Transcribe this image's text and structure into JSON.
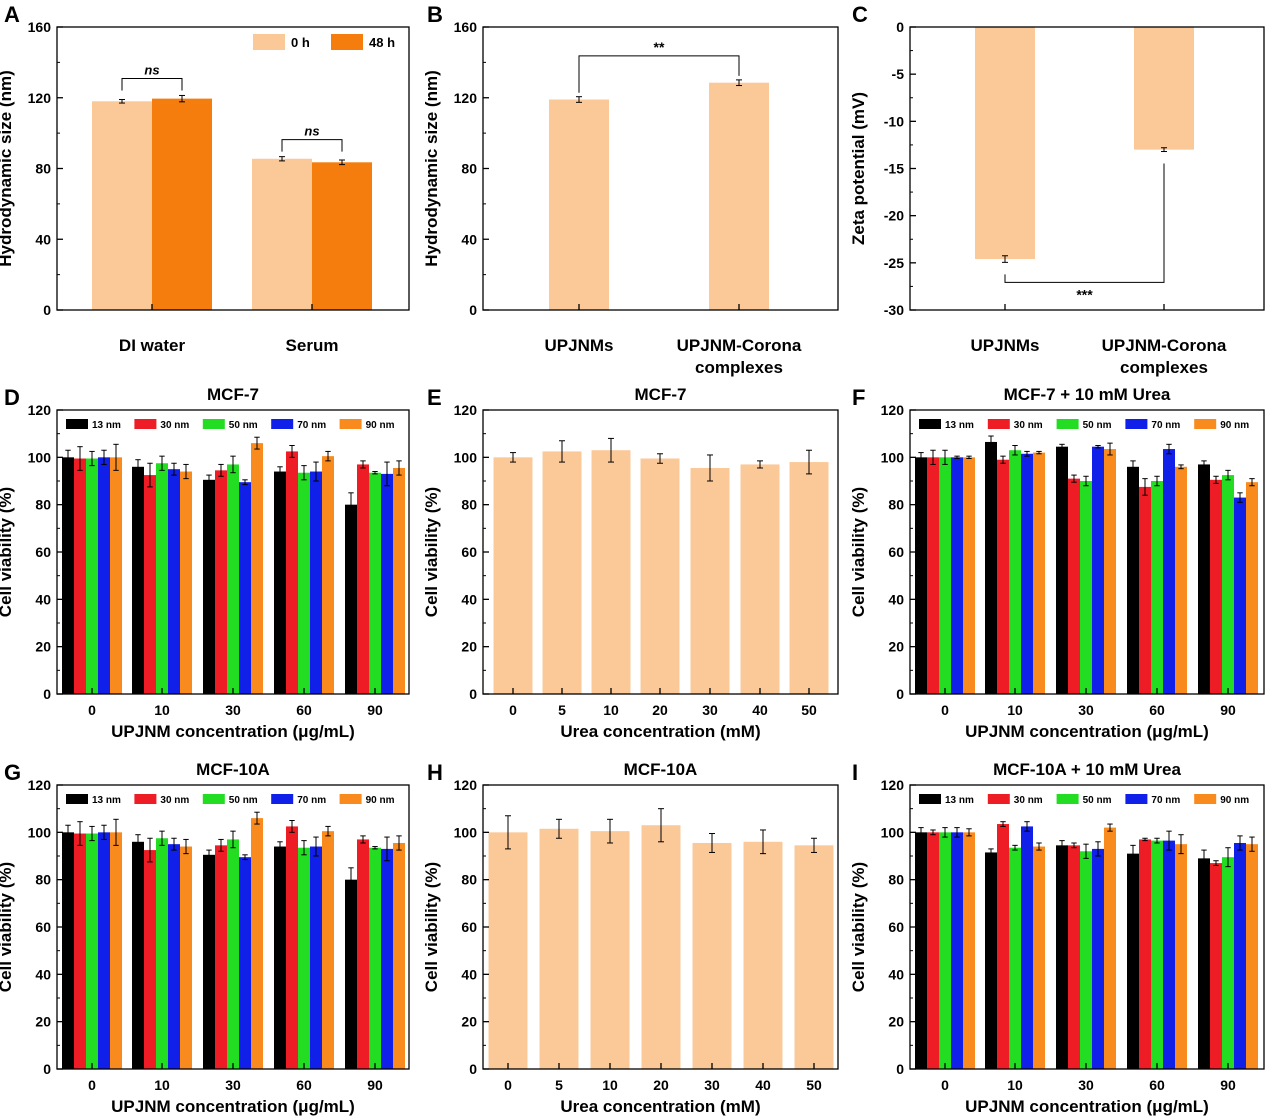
{
  "colors": {
    "light_orange": "#FBC898",
    "orange": "#F47D0D",
    "13 nm": "#000000",
    "30 nm": "#EE1C24",
    "50 nm": "#22DD22",
    "70 nm": "#1020E8",
    "90 nm": "#F98A1E"
  },
  "chart_data": [
    {
      "panel": "A",
      "type": "bar",
      "title": "",
      "ylabel": "Hydrodynamic size (nm)",
      "xlabel": "",
      "ylim": [
        0,
        160
      ],
      "yticks": [
        0,
        40,
        80,
        120,
        160
      ],
      "categories": [
        "DI water",
        "Serum"
      ],
      "series": [
        {
          "name": "0 h",
          "color": "light_orange",
          "values": [
            118,
            85.5
          ],
          "errors": [
            1,
            1.2
          ]
        },
        {
          "name": "48 h",
          "color": "orange",
          "values": [
            119.5,
            83.5
          ],
          "errors": [
            1.8,
            1.3
          ]
        }
      ],
      "legend": "top-right",
      "significance": [
        {
          "category": 0,
          "text": "ns"
        },
        {
          "category": 1,
          "text": "ns"
        }
      ]
    },
    {
      "panel": "B",
      "type": "bar",
      "title": "",
      "ylabel": "Hydrodynamic size (nm)",
      "xlabel": "",
      "ylim": [
        0,
        160
      ],
      "yticks": [
        0,
        40,
        80,
        120,
        160
      ],
      "categories": [
        "UPJNMs",
        "UPJNM-Corona\ncomplexes"
      ],
      "series": [
        {
          "color": "light_orange",
          "values": [
            119,
            128.5
          ],
          "errors": [
            1.6,
            1.6
          ]
        }
      ],
      "significance": [
        {
          "between": [
            0,
            1
          ],
          "text": "**",
          "position": "above"
        }
      ]
    },
    {
      "panel": "C",
      "type": "bar",
      "title": "",
      "ylabel": "Zeta potential (mV)",
      "xlabel": "",
      "ylim": [
        -30,
        0
      ],
      "yticks": [
        0,
        -5,
        -10,
        -15,
        -20,
        -25,
        -30
      ],
      "categories": [
        "UPJNMs",
        "UPJNM-Corona\ncomplexes"
      ],
      "series": [
        {
          "color": "light_orange",
          "values": [
            -24.6,
            -13
          ],
          "errors": [
            0.35,
            0.2
          ]
        }
      ],
      "significance": [
        {
          "between": [
            0,
            1
          ],
          "text": "***",
          "position": "below"
        }
      ]
    },
    {
      "panel": "D",
      "type": "bar",
      "title": "MCF-7",
      "ylabel": "Cell viability (%)",
      "xlabel": "UPJNM concentration (μg/mL)",
      "ylim": [
        0,
        120
      ],
      "yticks": [
        0,
        20,
        40,
        60,
        80,
        100,
        120
      ],
      "categories": [
        "0",
        "10",
        "30",
        "60",
        "90"
      ],
      "series": [
        {
          "name": "13 nm",
          "values": [
            100,
            96,
            90.5,
            94,
            80
          ],
          "errors": [
            3,
            3,
            2,
            2,
            5
          ]
        },
        {
          "name": "30 nm",
          "values": [
            99.5,
            92.5,
            94.5,
            102.5,
            97
          ],
          "errors": [
            5,
            5,
            2.5,
            2.5,
            1.5
          ]
        },
        {
          "name": "50 nm",
          "values": [
            99.5,
            97.5,
            97,
            93.5,
            93.5
          ],
          "errors": [
            3,
            3,
            3.5,
            3,
            0.5
          ]
        },
        {
          "name": "70 nm",
          "values": [
            100,
            95,
            89.5,
            94,
            93
          ],
          "errors": [
            3,
            2.5,
            1,
            4,
            5
          ]
        },
        {
          "name": "90 nm",
          "values": [
            100,
            94,
            106,
            100.5,
            95.5
          ],
          "errors": [
            5.5,
            3,
            2.5,
            2,
            3
          ]
        }
      ],
      "legend": "top"
    },
    {
      "panel": "E",
      "type": "bar",
      "title": "MCF-7",
      "ylabel": "Cell viability (%)",
      "xlabel": "Urea concentration (mM)",
      "ylim": [
        0,
        120
      ],
      "yticks": [
        0,
        20,
        40,
        60,
        80,
        100,
        120
      ],
      "categories": [
        "0",
        "5",
        "10",
        "20",
        "30",
        "40",
        "50"
      ],
      "series": [
        {
          "color": "light_orange",
          "values": [
            100,
            102.5,
            103,
            99.5,
            95.5,
            97,
            98
          ],
          "errors": [
            2,
            4.5,
            5,
            2,
            5.5,
            1.5,
            5
          ]
        }
      ]
    },
    {
      "panel": "F",
      "type": "bar",
      "title": "MCF-7 + 10 mM Urea",
      "ylabel": "Cell viability (%)",
      "xlabel": "UPJNM concentration (μg/mL)",
      "ylim": [
        0,
        120
      ],
      "yticks": [
        0,
        20,
        40,
        60,
        80,
        100,
        120
      ],
      "categories": [
        "0",
        "10",
        "30",
        "60",
        "90"
      ],
      "series": [
        {
          "name": "13 nm",
          "values": [
            100,
            106.5,
            104.5,
            96,
            97
          ],
          "errors": [
            2,
            2.5,
            1,
            2.5,
            1.5
          ]
        },
        {
          "name": "30 nm",
          "values": [
            100,
            99,
            91,
            87.5,
            90.5
          ],
          "errors": [
            3,
            1.5,
            1.5,
            3.5,
            1.5
          ]
        },
        {
          "name": "50 nm",
          "values": [
            100,
            103,
            90,
            90,
            92.5
          ],
          "errors": [
            3,
            2,
            2,
            2,
            2
          ]
        },
        {
          "name": "70 nm",
          "values": [
            100,
            101.5,
            104.5,
            103.5,
            83
          ],
          "errors": [
            0.5,
            1,
            0.5,
            2,
            2
          ]
        },
        {
          "name": "90 nm",
          "values": [
            100,
            102,
            103.5,
            96,
            89.5
          ],
          "errors": [
            0.5,
            0.5,
            2.5,
            0.8,
            1.5
          ]
        }
      ],
      "legend": "top"
    },
    {
      "panel": "G",
      "type": "bar",
      "title": "MCF-10A",
      "ylabel": "Cell viability (%)",
      "xlabel": "UPJNM concentration (μg/mL)",
      "ylim": [
        0,
        120
      ],
      "yticks": [
        0,
        20,
        40,
        60,
        80,
        100,
        120
      ],
      "categories": [
        "0",
        "10",
        "30",
        "60",
        "90"
      ],
      "series": [
        {
          "name": "13 nm",
          "values": [
            100,
            96,
            90.5,
            94,
            80
          ],
          "errors": [
            3,
            3,
            2,
            2,
            5
          ]
        },
        {
          "name": "30 nm",
          "values": [
            99.5,
            92.5,
            94.5,
            102.5,
            97
          ],
          "errors": [
            5,
            5,
            2.5,
            2.5,
            1.5
          ]
        },
        {
          "name": "50 nm",
          "values": [
            99.5,
            97.5,
            97,
            93.5,
            93.5
          ],
          "errors": [
            3,
            3,
            3.5,
            3,
            0.5
          ]
        },
        {
          "name": "70 nm",
          "values": [
            100,
            95,
            89.5,
            94,
            93
          ],
          "errors": [
            3,
            2.5,
            1,
            4,
            5
          ]
        },
        {
          "name": "90 nm",
          "values": [
            100,
            94,
            106,
            100.5,
            95.5
          ],
          "errors": [
            5.5,
            3,
            2.5,
            2,
            3
          ]
        }
      ],
      "legend": "top"
    },
    {
      "panel": "H",
      "type": "bar",
      "title": "MCF-10A",
      "ylabel": "Cell viability (%)",
      "xlabel": "Urea concentration (mM)",
      "ylim": [
        0,
        120
      ],
      "yticks": [
        0,
        20,
        40,
        60,
        80,
        100,
        120
      ],
      "categories": [
        "0",
        "5",
        "10",
        "20",
        "30",
        "40",
        "50"
      ],
      "series": [
        {
          "color": "light_orange",
          "values": [
            100,
            101.5,
            100.5,
            103,
            95.5,
            96,
            94.5
          ],
          "errors": [
            7,
            4,
            5,
            7,
            4,
            5,
            3
          ]
        }
      ]
    },
    {
      "panel": "I",
      "type": "bar",
      "title": "MCF-10A + 10 mM Urea",
      "ylabel": "Cell viability (%)",
      "xlabel": "UPJNM concentration (μg/mL)",
      "ylim": [
        0,
        120
      ],
      "yticks": [
        0,
        20,
        40,
        60,
        80,
        100,
        120
      ],
      "categories": [
        "0",
        "10",
        "30",
        "60",
        "90"
      ],
      "series": [
        {
          "name": "13 nm",
          "values": [
            100,
            91.5,
            94.5,
            91,
            89
          ],
          "errors": [
            2,
            1.5,
            2,
            3.5,
            3.5
          ]
        },
        {
          "name": "30 nm",
          "values": [
            100,
            103.5,
            94.5,
            97,
            87
          ],
          "errors": [
            1,
            1,
            1,
            0.5,
            1
          ]
        },
        {
          "name": "50 nm",
          "values": [
            100,
            93.5,
            92,
            96.5,
            89.5
          ],
          "errors": [
            2,
            1,
            3,
            1,
            4
          ]
        },
        {
          "name": "70 nm",
          "values": [
            100,
            102.5,
            93,
            96.5,
            95.5
          ],
          "errors": [
            2,
            2,
            3,
            4,
            3
          ]
        },
        {
          "name": "90 nm",
          "values": [
            100,
            94,
            102,
            95,
            95
          ],
          "errors": [
            1.5,
            1.5,
            1.5,
            4,
            3
          ]
        }
      ],
      "legend": "top"
    }
  ]
}
